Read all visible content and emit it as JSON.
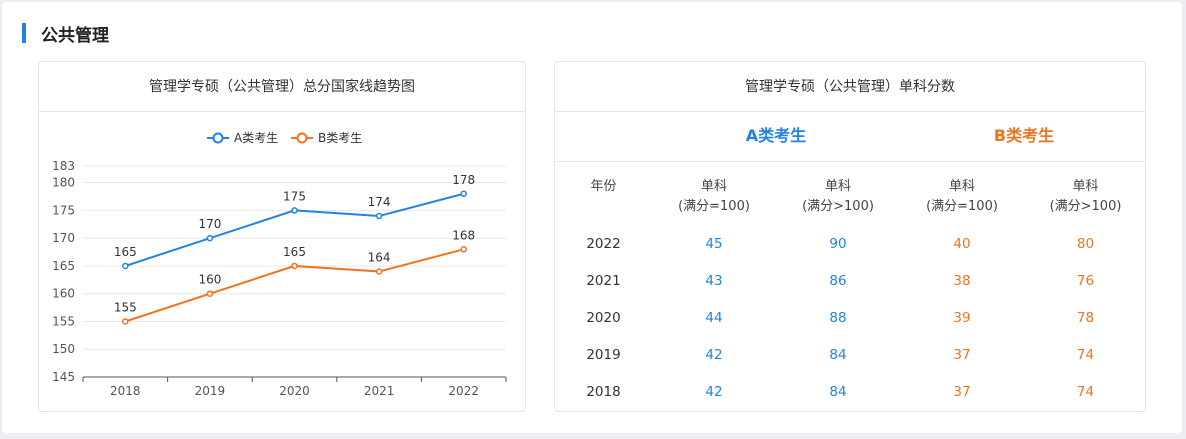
{
  "section": {
    "title": "公共管理"
  },
  "chart_card": {
    "title": "管理学专硕（公共管理）总分国家线趋势图"
  },
  "table_card": {
    "title": "管理学专硕（公共管理）单科分数",
    "group_a": "A类考生",
    "group_b": "B类考生",
    "headers": {
      "year": "年份",
      "a_100": [
        "单科",
        "(满分=100)"
      ],
      "a_gt100": [
        "单科",
        "(满分>100)"
      ],
      "b_100": [
        "单科",
        "(满分=100)"
      ],
      "b_gt100": [
        "单科",
        "(满分>100)"
      ]
    },
    "rows": [
      {
        "year": "2022",
        "a_100": "45",
        "a_gt100": "90",
        "b_100": "40",
        "b_gt100": "80"
      },
      {
        "year": "2021",
        "a_100": "43",
        "a_gt100": "86",
        "b_100": "38",
        "b_gt100": "76"
      },
      {
        "year": "2020",
        "a_100": "44",
        "a_gt100": "88",
        "b_100": "39",
        "b_gt100": "78"
      },
      {
        "year": "2019",
        "a_100": "42",
        "a_gt100": "84",
        "b_100": "37",
        "b_gt100": "74"
      },
      {
        "year": "2018",
        "a_100": "42",
        "a_gt100": "84",
        "b_100": "37",
        "b_gt100": "74"
      }
    ]
  },
  "colors": {
    "accent": "#1f84e3",
    "series_a": "#1f84e3",
    "series_b": "#f0731f"
  },
  "chart_data": {
    "type": "line",
    "title": "管理学专硕（公共管理）总分国家线趋势图",
    "x": [
      "2018",
      "2019",
      "2020",
      "2021",
      "2022"
    ],
    "series": [
      {
        "name": "A类考生",
        "values": [
          165,
          170,
          175,
          174,
          178
        ],
        "color": "#1f84e3"
      },
      {
        "name": "B类考生",
        "values": [
          155,
          160,
          165,
          164,
          168
        ],
        "color": "#f0731f"
      }
    ],
    "y_ticks": [
      145,
      150,
      155,
      160,
      165,
      170,
      175,
      180,
      183
    ],
    "ylim": [
      145,
      183
    ],
    "grid": true,
    "legend": "top-center",
    "data_labels": true
  }
}
